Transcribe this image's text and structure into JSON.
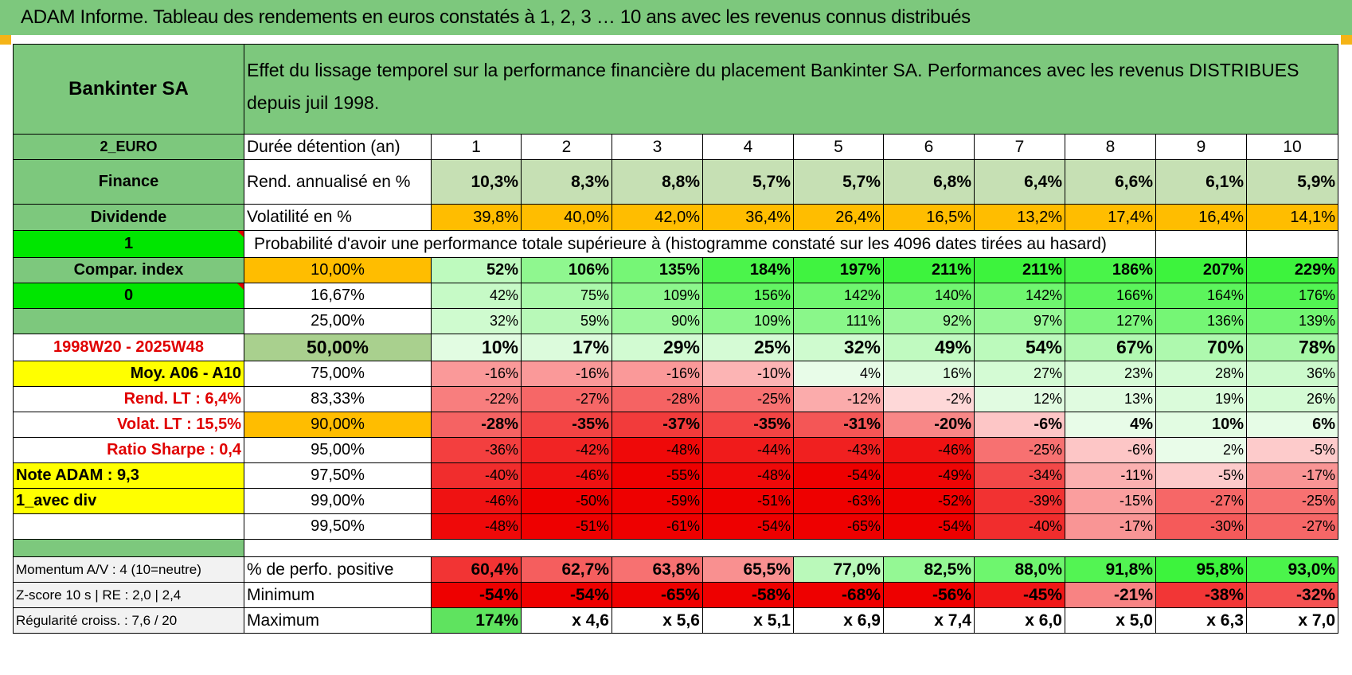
{
  "banner": {
    "title": "ADAM Informe. Tableau des rendements en euros constatés à 1, 2, 3 … 10 ans avec les revenus connus distribués"
  },
  "left": {
    "name": "Bankinter SA",
    "currency": "2_EURO",
    "sector": "Finance",
    "type": "Dividende",
    "flag1": "1",
    "compar": "Compar. index",
    "flag2": "0",
    "period": "1998W20 - 2025W48",
    "moy": "Moy. A06 - A10",
    "rend_lt": "Rend. LT :   6,4%",
    "volat_lt": "Volat. LT :   15,5%",
    "sharpe": "Ratio Sharpe :    0,4",
    "note": "Note ADAM : 9,3",
    "avec_div": "1_avec div",
    "momentum": "Momentum A/V : 4 (10=neutre)",
    "zscore": "Z-score 10 s | RE : 2,0 | 2,4",
    "regularite": "Régularité croiss. : 7,6 / 20"
  },
  "header": {
    "effect_text": "Effet du lissage temporel sur la performance financière du placement Bankinter SA. Performances avec les revenus DISTRIBUES depuis juil 1998.",
    "duree_label": "Durée détention (an)",
    "years": [
      "1",
      "2",
      "3",
      "4",
      "5",
      "6",
      "7",
      "8",
      "9",
      "10"
    ]
  },
  "rend": {
    "label": "Rend. annualisé en %",
    "values": [
      "10,3%",
      "8,3%",
      "8,8%",
      "5,7%",
      "5,7%",
      "6,8%",
      "6,4%",
      "6,6%",
      "6,1%",
      "5,9%"
    ]
  },
  "vol": {
    "label": "Volatilité en %",
    "values": [
      "39,8%",
      "40,0%",
      "42,0%",
      "36,4%",
      "26,4%",
      "16,5%",
      "13,2%",
      "17,4%",
      "16,4%",
      "14,1%"
    ]
  },
  "prob_title": "Probabilité d'avoir une performance totale supérieure à (histogramme constaté sur les 4096 dates tirées au hasard)",
  "prob_rows": [
    {
      "pct": "10,00%",
      "values": [
        "52%",
        "106%",
        "135%",
        "184%",
        "197%",
        "211%",
        "211%",
        "186%",
        "207%",
        "229%"
      ]
    },
    {
      "pct": "16,67%",
      "values": [
        "42%",
        "75%",
        "109%",
        "156%",
        "142%",
        "140%",
        "142%",
        "166%",
        "164%",
        "176%"
      ]
    },
    {
      "pct": "25,00%",
      "values": [
        "32%",
        "59%",
        "90%",
        "109%",
        "111%",
        "92%",
        "97%",
        "127%",
        "136%",
        "139%"
      ]
    },
    {
      "pct": "50,00%",
      "values": [
        "10%",
        "17%",
        "29%",
        "25%",
        "32%",
        "49%",
        "54%",
        "67%",
        "70%",
        "78%"
      ]
    },
    {
      "pct": "75,00%",
      "values": [
        "-16%",
        "-16%",
        "-16%",
        "-10%",
        "4%",
        "16%",
        "27%",
        "23%",
        "28%",
        "36%"
      ]
    },
    {
      "pct": "83,33%",
      "values": [
        "-22%",
        "-27%",
        "-28%",
        "-25%",
        "-12%",
        "-2%",
        "12%",
        "13%",
        "19%",
        "26%"
      ]
    },
    {
      "pct": "90,00%",
      "values": [
        "-28%",
        "-35%",
        "-37%",
        "-35%",
        "-31%",
        "-20%",
        "-6%",
        "4%",
        "10%",
        "6%"
      ]
    },
    {
      "pct": "95,00%",
      "values": [
        "-36%",
        "-42%",
        "-48%",
        "-44%",
        "-43%",
        "-46%",
        "-25%",
        "-6%",
        "2%",
        "-5%"
      ]
    },
    {
      "pct": "97,50%",
      "values": [
        "-40%",
        "-46%",
        "-55%",
        "-48%",
        "-54%",
        "-49%",
        "-34%",
        "-11%",
        "-5%",
        "-17%"
      ]
    },
    {
      "pct": "99,00%",
      "values": [
        "-46%",
        "-50%",
        "-59%",
        "-51%",
        "-63%",
        "-52%",
        "-39%",
        "-15%",
        "-27%",
        "-25%"
      ]
    },
    {
      "pct": "99,50%",
      "values": [
        "-48%",
        "-51%",
        "-61%",
        "-54%",
        "-65%",
        "-54%",
        "-40%",
        "-17%",
        "-30%",
        "-27%"
      ]
    }
  ],
  "positive": {
    "label": "% de perfo. positive",
    "values": [
      "60,4%",
      "62,7%",
      "63,8%",
      "65,5%",
      "77,0%",
      "82,5%",
      "88,0%",
      "91,8%",
      "95,8%",
      "93,0%"
    ]
  },
  "minimum": {
    "label": "Minimum",
    "values": [
      "-54%",
      "-54%",
      "-65%",
      "-58%",
      "-68%",
      "-56%",
      "-45%",
      "-21%",
      "-38%",
      "-32%"
    ]
  },
  "maximum": {
    "label": "Maximum",
    "values": [
      "174%",
      "x 4,6",
      "x 5,6",
      "x 5,1",
      "x 6,9",
      "x 7,4",
      "x 6,0",
      "x 5,0",
      "x 6,3",
      "x 7,0"
    ]
  },
  "colors": {
    "header_green": "#7dc87d",
    "orange": "#ffbd00",
    "yellow": "#ffff00",
    "bright_green": "#00e600",
    "label_red": "#e00000"
  }
}
